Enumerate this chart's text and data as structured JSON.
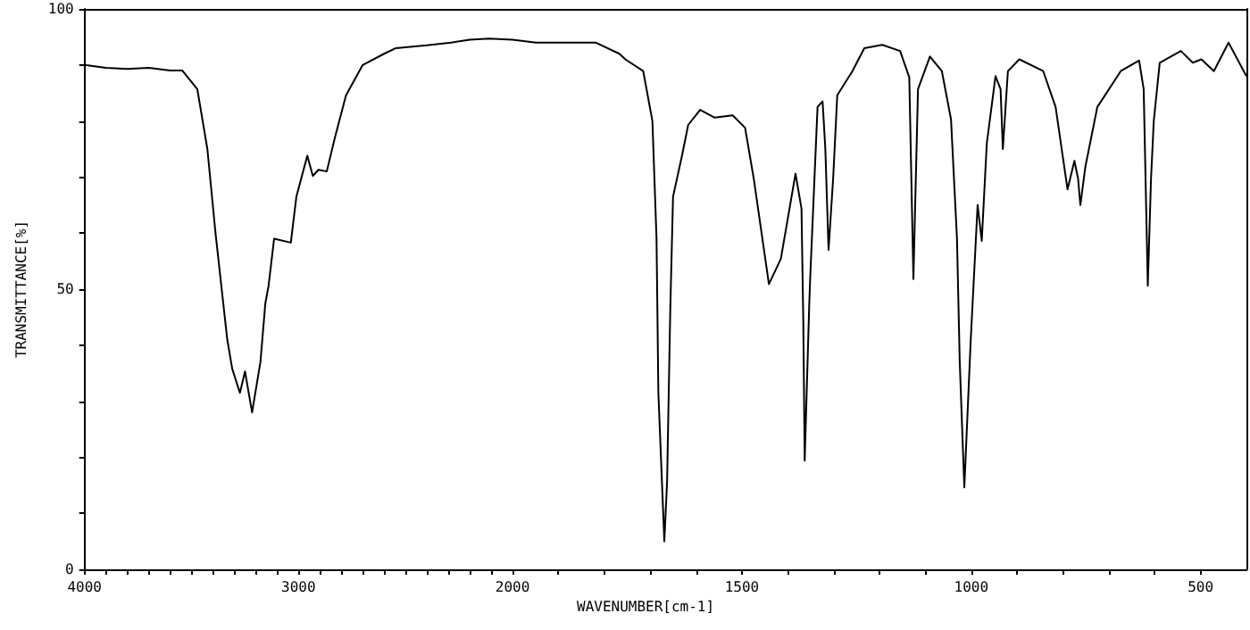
{
  "chart_data": [
    {
      "type": "line",
      "ylabel": "TRANSMITTANCE[%]",
      "xlim": [
        4000,
        2000
      ],
      "ylim": [
        0,
        100
      ],
      "xticks": [
        4000,
        {
          "value": 3900,
          "label": null
        },
        {
          "value": 3800,
          "label": null
        },
        {
          "value": 3700,
          "label": null
        },
        {
          "value": 3600,
          "label": null
        },
        {
          "value": 3500,
          "label": null
        },
        {
          "value": 3400,
          "label": null
        },
        {
          "value": 3300,
          "label": null
        },
        {
          "value": 3200,
          "label": null
        },
        {
          "value": 3100,
          "label": null
        },
        3000,
        {
          "value": 2900,
          "label": null
        },
        {
          "value": 2800,
          "label": null
        },
        {
          "value": 2700,
          "label": null
        },
        {
          "value": 2600,
          "label": null
        },
        {
          "value": 2500,
          "label": null
        },
        {
          "value": 2400,
          "label": null
        },
        {
          "value": 2300,
          "label": null
        },
        {
          "value": 2200,
          "label": null
        },
        {
          "value": 2100,
          "label": null
        },
        2000
      ],
      "yticks": [
        0,
        {
          "value": 10,
          "label": null
        },
        {
          "value": 20,
          "label": null
        },
        {
          "value": 30,
          "label": null
        },
        {
          "value": 40,
          "label": null
        },
        50,
        {
          "value": 60,
          "label": null
        },
        {
          "value": 70,
          "label": null
        },
        {
          "value": 80,
          "label": null
        },
        {
          "value": 90,
          "label": null
        },
        100
      ],
      "series": [
        {
          "color": "#000000",
          "x": [
            4000,
            3900,
            3800,
            3700,
            3600,
            3543,
            3473,
            3426,
            3388,
            3349,
            3333,
            3310,
            3274,
            3250,
            3217,
            3178,
            3155,
            3140,
            3114,
            3036,
            3010,
            2959,
            2933,
            2907,
            2868,
            2829,
            2778,
            2700,
            2600,
            2545,
            2400,
            2287,
            2200,
            2110,
            2000
          ],
          "values": [
            90,
            89.5,
            89.3,
            89.5,
            89,
            89,
            85.7,
            75,
            60,
            46.5,
            41,
            35.8,
            31.5,
            35.3,
            28,
            37,
            47.5,
            50.6,
            59,
            58.3,
            66.5,
            73.8,
            70.2,
            71.3,
            71,
            77.2,
            84.6,
            90,
            92,
            93,
            93.5,
            94,
            94.5,
            94.7,
            94.5
          ]
        }
      ]
    },
    {
      "type": "line",
      "title": "WAVENUMBER[cm-1]",
      "xlim": [
        2000,
        400
      ],
      "ylim": [
        0,
        100
      ],
      "tick_labels": "x",
      "xticks": [
        {
          "value": 2000,
          "label": null
        },
        {
          "value": 1900,
          "label": null
        },
        {
          "value": 1800,
          "label": null
        },
        {
          "value": 1700,
          "label": null
        },
        {
          "value": 1600,
          "label": null
        },
        1500,
        {
          "value": 1400,
          "label": null
        },
        {
          "value": 1300,
          "label": null
        },
        {
          "value": 1200,
          "label": null
        },
        {
          "value": 1100,
          "label": null
        },
        1000,
        {
          "value": 900,
          "label": null
        },
        {
          "value": 800,
          "label": null
        },
        {
          "value": 700,
          "label": null
        },
        {
          "value": 600,
          "label": null
        },
        500
      ],
      "series": [
        {
          "color": "#000000",
          "x": [
            2000,
            1949,
            1819,
            1767,
            1754,
            1715,
            1695,
            1686,
            1682,
            1669,
            1663,
            1656,
            1650,
            1630,
            1617,
            1591,
            1559,
            1520,
            1493,
            1474,
            1441,
            1415,
            1383,
            1370,
            1366,
            1363,
            1353,
            1351,
            1335,
            1324,
            1318,
            1311,
            1301,
            1292,
            1259,
            1233,
            1194,
            1155,
            1135,
            1126,
            1116,
            1090,
            1064,
            1044,
            1031,
            1025,
            1015,
            1001,
            986,
            977,
            966,
            947,
            936,
            931,
            920,
            895,
            843,
            816,
            790,
            775,
            767,
            762,
            751,
            725,
            674,
            634,
            624,
            615,
            608,
            602,
            589,
            543,
            517,
            498,
            471,
            439,
            400
          ],
          "values": [
            94.5,
            94,
            94,
            92,
            91,
            88.9,
            80,
            59,
            31.5,
            5,
            15.6,
            46.5,
            66.5,
            74,
            79.3,
            82,
            80.6,
            81,
            78.8,
            69.7,
            50.9,
            55.4,
            70.6,
            64.4,
            44,
            19.4,
            47.5,
            52,
            82.5,
            83.5,
            75,
            57,
            69.7,
            84.6,
            88.9,
            93,
            93.6,
            92.5,
            87.8,
            51.8,
            85.7,
            91.5,
            88.9,
            80.3,
            59,
            37,
            14.6,
            41,
            65,
            58.6,
            76,
            88,
            85.7,
            75,
            88.9,
            91,
            88.9,
            82.5,
            67.8,
            72.9,
            69.7,
            65,
            71.9,
            82.5,
            88.9,
            90.8,
            85.7,
            50.6,
            69.7,
            80,
            90.4,
            92.5,
            90.4,
            91,
            88.9,
            94,
            88
          ]
        }
      ]
    }
  ]
}
